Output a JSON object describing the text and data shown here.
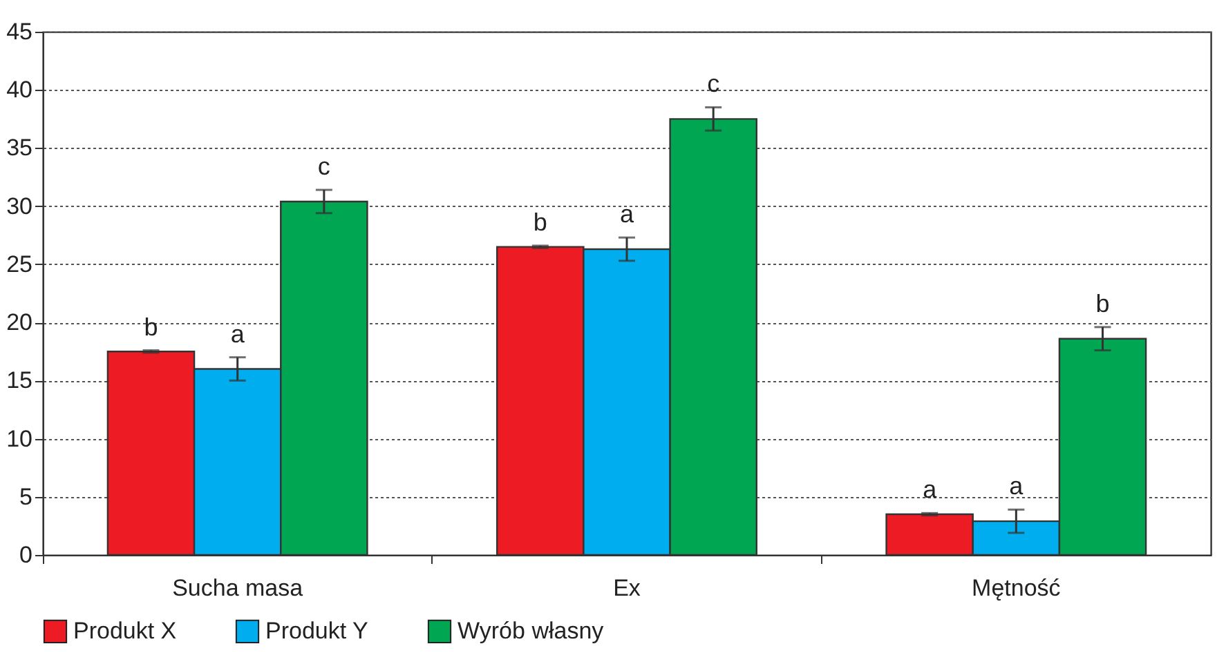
{
  "chart_data": {
    "type": "bar",
    "categories": [
      "Sucha masa",
      "Ex",
      "Mętność"
    ],
    "series": [
      {
        "name": "Produkt X",
        "color": "#ed1c24",
        "values": [
          17.5,
          26.5,
          3.5
        ],
        "errors": [
          0.1,
          0.1,
          0.1
        ],
        "value_labels": [
          "b",
          "b",
          "a"
        ]
      },
      {
        "name": "Produkt Y",
        "color": "#00aeef",
        "values": [
          16.0,
          26.3,
          2.9
        ],
        "errors": [
          1.0,
          1.0,
          1.0
        ],
        "value_labels": [
          "a",
          "a",
          "a"
        ]
      },
      {
        "name": "Wyrób własny",
        "color": "#00a651",
        "values": [
          30.4,
          37.5,
          18.6
        ],
        "errors": [
          1.0,
          1.0,
          1.0
        ],
        "value_labels": [
          "c",
          "c",
          "b"
        ]
      }
    ],
    "ylim": [
      0,
      45
    ],
    "yticks": [
      0,
      5,
      10,
      15,
      20,
      25,
      30,
      35,
      40,
      45
    ],
    "grid": "y",
    "legend": "bottom"
  }
}
